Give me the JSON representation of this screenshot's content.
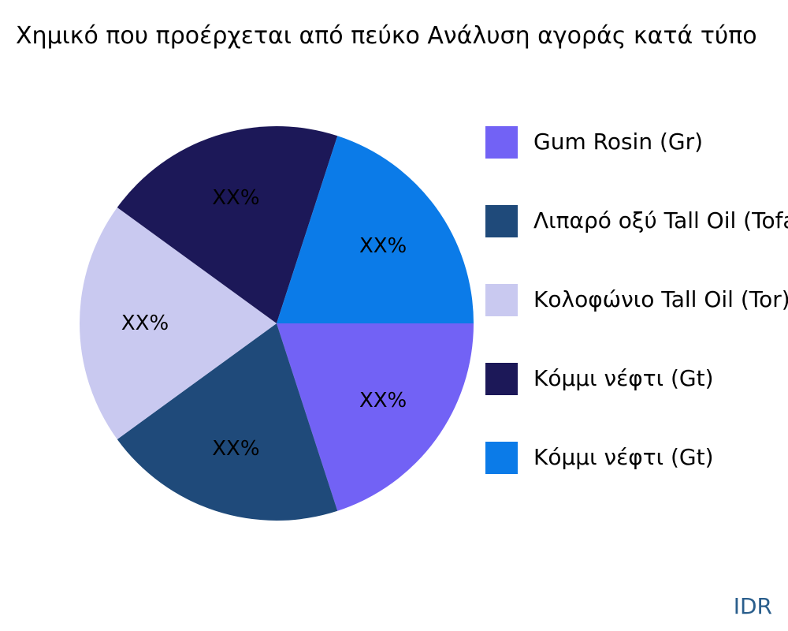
{
  "chart_data": {
    "type": "pie",
    "title": "Χημικό που προέρχεται από πεύκο Ανάλυση αγοράς κατά τύπο",
    "slices": [
      {
        "name": "Gum Rosin (Gr)",
        "value": 20,
        "label": "XX%",
        "color": "#7262F5"
      },
      {
        "name": "Λιπαρό οξύ Tall Oil (Tofa)",
        "value": 20,
        "label": "XX%",
        "color": "#1F4A7A"
      },
      {
        "name": "Κολοφώνιο Tall Oil (Tor)",
        "value": 20,
        "label": "XX%",
        "color": "#C9C9F0"
      },
      {
        "name": "Κόμμι νέφτι (Gt)",
        "value": 20,
        "label": "XX%",
        "color": "#1C1858"
      },
      {
        "name": "Κόμμι νέφτι (Gt)",
        "value": 20,
        "label": "XX%",
        "color": "#0B7BE8"
      }
    ],
    "legend_position": "right",
    "label_color": "#000000"
  },
  "watermark": {
    "text": "IDR",
    "color": "#2A5E8C"
  }
}
